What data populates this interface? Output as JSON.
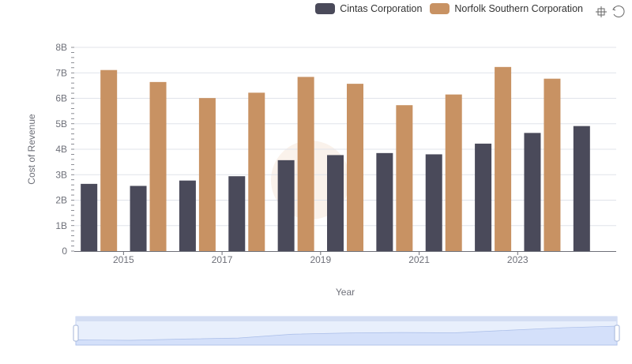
{
  "legend": {
    "series0": "Cintas Corporation",
    "series1": "Norfolk Southern Corporation"
  },
  "toolbox": {
    "zoom_icon": "data-zoom-icon",
    "restore_icon": "restore-icon"
  },
  "colors": {
    "series0": "#4a4a5a",
    "series1": "#c89263",
    "grid": "#e0e3ea",
    "slider_fill": "#dce6fb",
    "slider_border": "#c6d3f0"
  },
  "chart_data": {
    "type": "bar",
    "xlabel": "Year",
    "ylabel": "Cost of Revenue",
    "x": [
      2014,
      2015,
      2016,
      2017,
      2018,
      2019,
      2020,
      2021,
      2022,
      2023,
      2024
    ],
    "x_tick_labels": [
      "2015",
      "2017",
      "2019",
      "2021",
      "2023"
    ],
    "y_tick_labels": [
      "0",
      "1B",
      "2B",
      "3B",
      "4B",
      "5B",
      "6B",
      "7B",
      "8B"
    ],
    "ylim": [
      0,
      8000000000
    ],
    "grid": true,
    "legend_position": "top-right",
    "series": [
      {
        "name": "Cintas Corporation",
        "values": [
          2640000000,
          2560000000,
          2770000000,
          2940000000,
          3570000000,
          3770000000,
          3850000000,
          3800000000,
          4220000000,
          4640000000,
          4910000000
        ]
      },
      {
        "name": "Norfolk Southern Corporation",
        "values": [
          7110000000,
          6640000000,
          6010000000,
          6220000000,
          6840000000,
          6570000000,
          5730000000,
          6150000000,
          7230000000,
          6770000000,
          null
        ]
      }
    ]
  }
}
